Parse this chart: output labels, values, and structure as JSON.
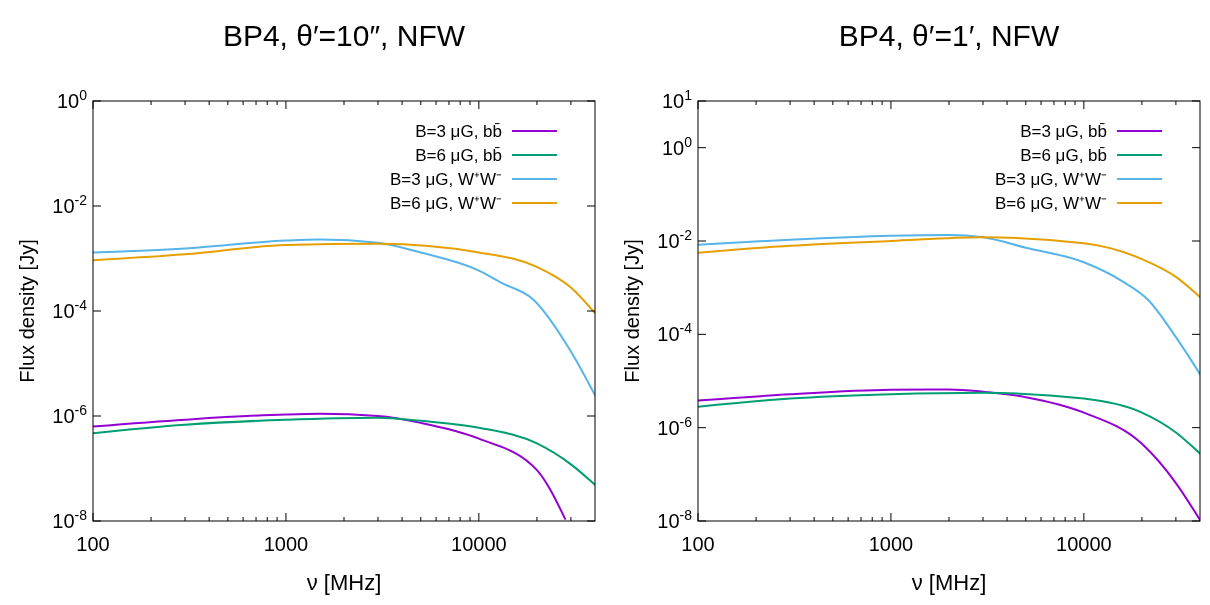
{
  "chart_data": [
    {
      "type": "line",
      "title": "BP4, θ′=10″, NFW",
      "xlabel": "ν [MHz]",
      "ylabel": "Flux density [Jy]",
      "log": "xy",
      "legend": "top right",
      "line_style": "solid",
      "marker": "none",
      "xlim": [
        100,
        40000
      ],
      "ylim": [
        1e-08,
        1
      ],
      "xticks": [
        100,
        {
          "value": 200,
          "label": null
        },
        {
          "value": 300,
          "label": null
        },
        {
          "value": 400,
          "label": null
        },
        {
          "value": 500,
          "label": null
        },
        {
          "value": 600,
          "label": null
        },
        {
          "value": 700,
          "label": null
        },
        {
          "value": 800,
          "label": null
        },
        {
          "value": 900,
          "label": null
        },
        1000,
        {
          "value": 2000,
          "label": null
        },
        {
          "value": 3000,
          "label": null
        },
        {
          "value": 4000,
          "label": null
        },
        {
          "value": 5000,
          "label": null
        },
        {
          "value": 6000,
          "label": null
        },
        {
          "value": 7000,
          "label": null
        },
        {
          "value": 8000,
          "label": null
        },
        {
          "value": 9000,
          "label": null
        },
        10000,
        {
          "value": 20000,
          "label": null
        },
        {
          "value": 30000,
          "label": null
        }
      ],
      "yticks": [
        {
          "value": 1e-08,
          "label": "10$^{-8}$"
        },
        {
          "value": 1e-06,
          "label": "10$^{-6}$"
        },
        {
          "value": 0.0001,
          "label": "10$^{-4}$"
        },
        {
          "value": 0.01,
          "label": "10$^{-2}$"
        },
        {
          "value": 1,
          "label": "10$^{0}$"
        }
      ],
      "series": [
        {
          "name": "B=3 μG,  bb̄",
          "color": "#9400d3",
          "x": [
            100,
            300,
            1000,
            1500,
            3000,
            5000,
            10000,
            20000,
            28000
          ],
          "values": [
            6.3e-07,
            8.5e-07,
            1.07e-06,
            1.1e-06,
            1e-06,
            7.4e-07,
            3.7e-07,
            9.3e-08,
            1.1e-08
          ]
        },
        {
          "name": "B=6 μG,  bb̄",
          "color": "#009e73",
          "x": [
            100,
            300,
            1000,
            3000,
            5000,
            10000,
            20000,
            30000,
            40000
          ],
          "values": [
            4.7e-07,
            6.8e-07,
            8.5e-07,
            9.3e-07,
            8.1e-07,
            6e-07,
            3e-07,
            1.2e-07,
            4.9e-08
          ]
        },
        {
          "name": "B=3 μG, W⁺W⁻",
          "color": "#56b4e9",
          "x": [
            100,
            300,
            1000,
            1500,
            3000,
            5000,
            10000,
            13200,
            19000,
            30000,
            40000
          ],
          "values": [
            0.0013,
            0.00155,
            0.0022,
            0.0023,
            0.002,
            0.0013,
            0.00059,
            0.00034,
            0.00017,
            1.7e-05,
            2.5e-06
          ]
        },
        {
          "name": "B=6 μG, W⁺W⁻",
          "color": "#e69f00",
          "x": [
            100,
            300,
            1000,
            3000,
            10000,
            20000,
            30000,
            40000
          ],
          "values": [
            0.00093,
            0.0012,
            0.0018,
            0.0019,
            0.0013,
            0.00069,
            0.00028,
            9.1e-05
          ]
        }
      ]
    },
    {
      "type": "line",
      "title": "BP4, θ′=1′, NFW",
      "xlabel": "ν [MHz]",
      "ylabel": "Flux density [Jy]",
      "log": "xy",
      "legend": "top right",
      "line_style": "solid",
      "marker": "none",
      "xlim": [
        100,
        40000
      ],
      "ylim": [
        1e-08,
        10
      ],
      "xticks": [
        100,
        {
          "value": 200,
          "label": null
        },
        {
          "value": 300,
          "label": null
        },
        {
          "value": 400,
          "label": null
        },
        {
          "value": 500,
          "label": null
        },
        {
          "value": 600,
          "label": null
        },
        {
          "value": 700,
          "label": null
        },
        {
          "value": 800,
          "label": null
        },
        {
          "value": 900,
          "label": null
        },
        1000,
        {
          "value": 2000,
          "label": null
        },
        {
          "value": 3000,
          "label": null
        },
        {
          "value": 4000,
          "label": null
        },
        {
          "value": 5000,
          "label": null
        },
        {
          "value": 6000,
          "label": null
        },
        {
          "value": 7000,
          "label": null
        },
        {
          "value": 8000,
          "label": null
        },
        {
          "value": 9000,
          "label": null
        },
        10000,
        {
          "value": 20000,
          "label": null
        },
        {
          "value": 30000,
          "label": null
        }
      ],
      "yticks": [
        {
          "value": 1e-08,
          "label": "10$^{-8}$"
        },
        {
          "value": 1e-06,
          "label": "10$^{-6}$"
        },
        {
          "value": 0.0001,
          "label": "10$^{-4}$"
        },
        {
          "value": 0.01,
          "label": "10$^{-2}$"
        },
        {
          "value": 1,
          "label": "10$^{0}$"
        },
        {
          "value": 10,
          "label": "10$^{1}$"
        }
      ],
      "series": [
        {
          "name": "B=3 μG,  bb̄",
          "color": "#9400d3",
          "x": [
            100,
            300,
            1000,
            2000,
            3000,
            5000,
            10000,
            20000,
            30000,
            40000
          ],
          "values": [
            3.8e-06,
            5.2e-06,
            6.5e-06,
            6.6e-06,
            5.9e-06,
            4.5e-06,
            2.1e-06,
            4.5e-07,
            6.5e-08,
            1.05e-08
          ]
        },
        {
          "name": "B=6 μG,  bb̄",
          "color": "#009e73",
          "x": [
            100,
            300,
            1000,
            3000,
            10000,
            20000,
            30000,
            40000
          ],
          "values": [
            2.8e-06,
            4.2e-06,
            5.2e-06,
            5.6e-06,
            4.2e-06,
            2.1e-06,
            7.9e-07,
            2.8e-07
          ]
        },
        {
          "name": "B=3 μG, W⁺W⁻",
          "color": "#56b4e9",
          "x": [
            100,
            300,
            1000,
            2000,
            3000,
            5000,
            10000,
            15700,
            21500,
            30000,
            40000
          ],
          "values": [
            0.0083,
            0.0107,
            0.013,
            0.0135,
            0.012,
            0.0072,
            0.0035,
            0.0014,
            0.00055,
            8.7e-05,
            1.4e-05
          ]
        },
        {
          "name": "B=6 μG, W⁺W⁻",
          "color": "#e69f00",
          "x": [
            100,
            300,
            1000,
            3000,
            10000,
            20000,
            30000,
            40000
          ],
          "values": [
            0.0056,
            0.0079,
            0.01,
            0.012,
            0.0089,
            0.0041,
            0.0017,
            0.00063
          ]
        }
      ]
    }
  ]
}
